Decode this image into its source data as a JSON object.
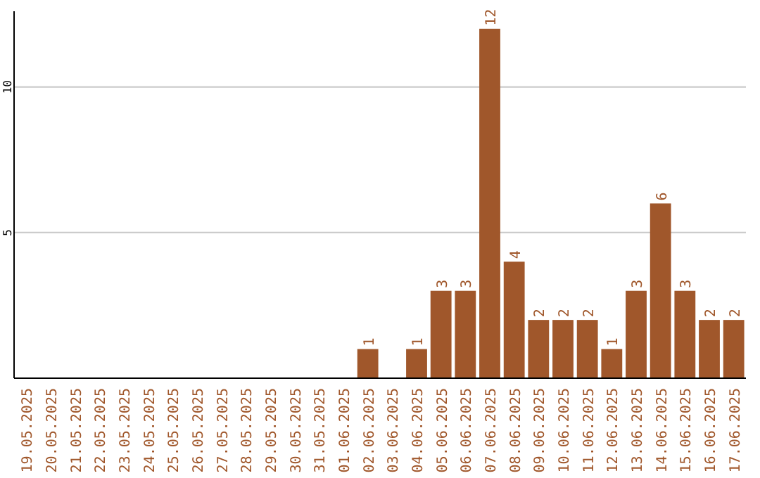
{
  "chart_data": {
    "type": "bar",
    "categories": [
      "19.05.2025",
      "20.05.2025",
      "21.05.2025",
      "22.05.2025",
      "23.05.2025",
      "24.05.2025",
      "25.05.2025",
      "26.05.2025",
      "27.05.2025",
      "28.05.2025",
      "29.05.2025",
      "30.05.2025",
      "31.05.2025",
      "01.06.2025",
      "02.06.2025",
      "03.06.2025",
      "04.06.2025",
      "05.06.2025",
      "06.06.2025",
      "07.06.2025",
      "08.06.2025",
      "09.06.2025",
      "10.06.2025",
      "11.06.2025",
      "12.06.2025",
      "13.06.2025",
      "14.06.2025",
      "15.06.2025",
      "16.06.2025",
      "17.06.2025"
    ],
    "values": [
      0,
      0,
      0,
      0,
      0,
      0,
      0,
      0,
      0,
      0,
      0,
      0,
      0,
      0,
      1,
      0,
      1,
      3,
      3,
      12,
      4,
      2,
      2,
      2,
      1,
      3,
      6,
      3,
      2,
      2
    ],
    "value_labels": [
      null,
      null,
      null,
      null,
      null,
      null,
      null,
      null,
      null,
      null,
      null,
      null,
      null,
      null,
      "1",
      null,
      "1",
      "3",
      "3",
      "12",
      "4",
      "2",
      "2",
      "2",
      "1",
      "3",
      "6",
      "3",
      "2",
      "2"
    ],
    "color": "#a0572b",
    "ylim": [
      0,
      12.6
    ],
    "yticks": [
      5,
      10
    ],
    "grid": "y"
  }
}
